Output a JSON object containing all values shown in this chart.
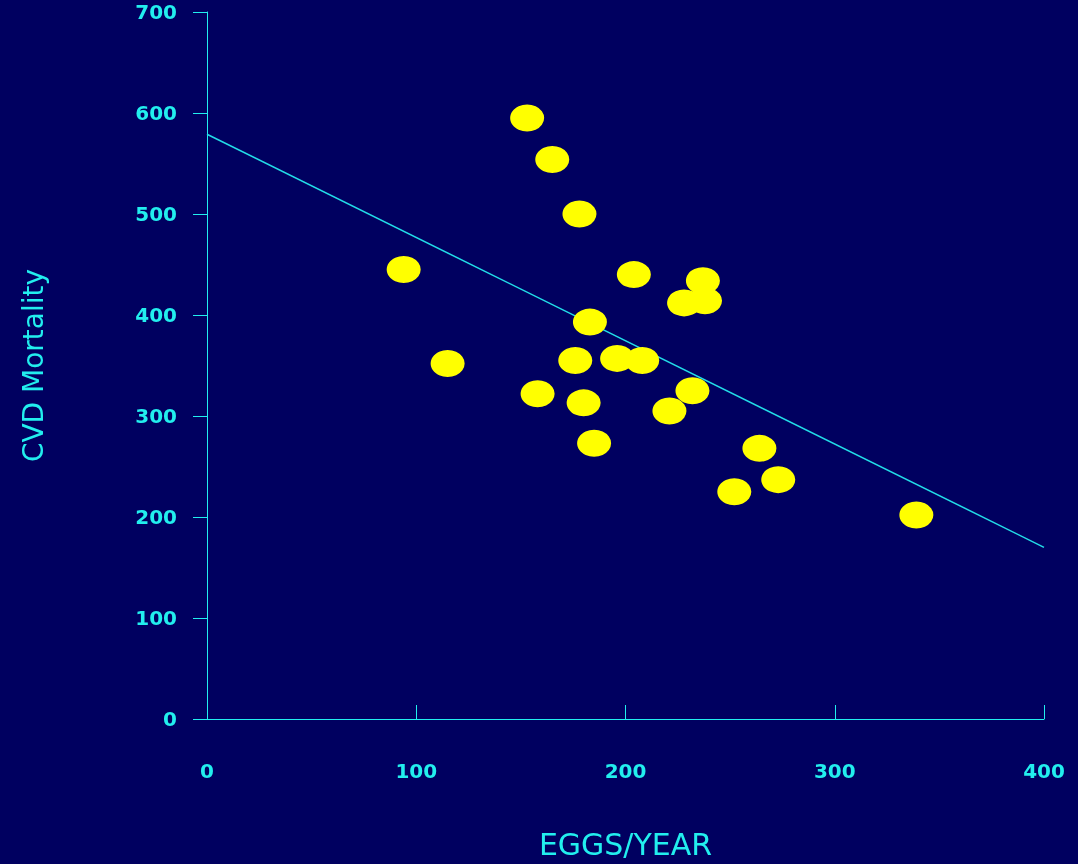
{
  "chart_data": {
    "type": "scatter",
    "xlabel": "EGGS/YEAR",
    "ylabel": "CVD Mortality",
    "xlim": [
      0,
      400
    ],
    "xticks": [
      0,
      100,
      200,
      300,
      400
    ],
    "ylim": [
      0,
      700
    ],
    "yticks": [
      0,
      100,
      200,
      300,
      400,
      500,
      600,
      700
    ],
    "grid": false,
    "marker": "circle",
    "series": [
      {
        "color": "#ffff00",
        "x": [
          153,
          165,
          178,
          94,
          204,
          237,
          228,
          238,
          183,
          115,
          176,
          196,
          208,
          158,
          180,
          232,
          221,
          185,
          264,
          273,
          252,
          339
        ],
        "values": [
          595,
          554,
          500,
          445,
          440,
          434,
          412,
          414,
          393,
          352,
          355,
          357,
          355,
          322,
          313,
          325,
          305,
          273,
          268,
          237,
          225,
          202
        ]
      },
      {
        "type": "line",
        "color": "#22dde8",
        "line_style": "solid",
        "marker": "none",
        "x": [
          0,
          400
        ],
        "values": [
          579,
          170
        ]
      }
    ]
  }
}
